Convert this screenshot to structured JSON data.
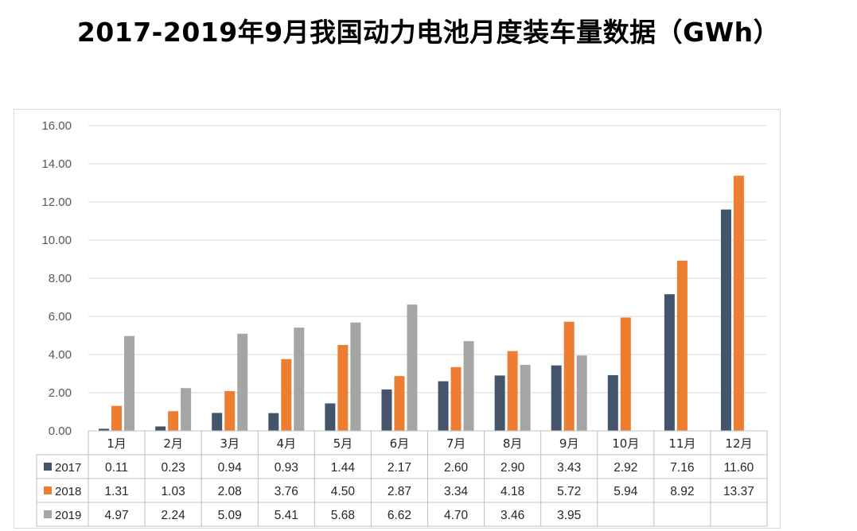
{
  "title": "2017-2019年9月我国动力电池月度装车量数据（GWh）",
  "chart_data": {
    "type": "bar",
    "categories": [
      "1月",
      "2月",
      "3月",
      "4月",
      "5月",
      "6月",
      "7月",
      "8月",
      "9月",
      "10月",
      "11月",
      "12月"
    ],
    "series": [
      {
        "name": "2017",
        "color": "#44546a",
        "values": [
          0.11,
          0.23,
          0.94,
          0.93,
          1.44,
          2.17,
          2.6,
          2.9,
          3.43,
          2.92,
          7.16,
          11.6
        ],
        "labels": [
          "0.11",
          "0.23",
          "0.94",
          "0.93",
          "1.44",
          "2.17",
          "2.60",
          "2.90",
          "3.43",
          "2.92",
          "7.16",
          "11.60"
        ]
      },
      {
        "name": "2018",
        "color": "#ed7d31",
        "values": [
          1.31,
          1.03,
          2.08,
          3.76,
          4.5,
          2.87,
          3.34,
          4.18,
          5.72,
          5.94,
          8.92,
          13.37
        ],
        "labels": [
          "1.31",
          "1.03",
          "2.08",
          "3.76",
          "4.50",
          "2.87",
          "3.34",
          "4.18",
          "5.72",
          "5.94",
          "8.92",
          "13.37"
        ]
      },
      {
        "name": "2019",
        "color": "#a5a5a5",
        "values": [
          4.97,
          2.24,
          5.09,
          5.41,
          5.68,
          6.62,
          4.7,
          3.46,
          3.95,
          null,
          null,
          null
        ],
        "labels": [
          "4.97",
          "2.24",
          "5.09",
          "5.41",
          "5.68",
          "6.62",
          "4.70",
          "3.46",
          "3.95",
          "",
          "",
          ""
        ]
      }
    ],
    "ylim": [
      0,
      16
    ],
    "yticks": [
      "0.00",
      "2.00",
      "4.00",
      "6.00",
      "8.00",
      "10.00",
      "12.00",
      "14.00",
      "16.00"
    ],
    "grid": true,
    "legend": "data-table-below"
  }
}
